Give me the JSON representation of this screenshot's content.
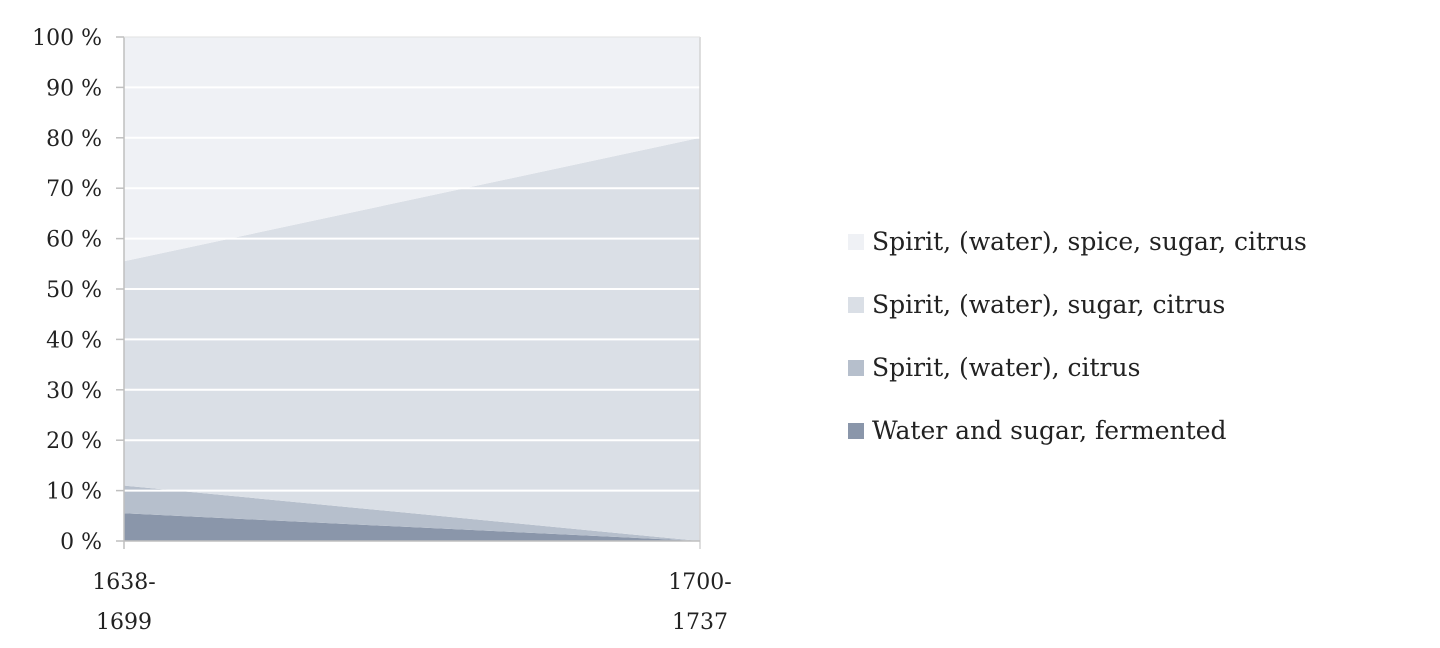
{
  "chart_data": {
    "type": "area",
    "stacked": true,
    "normalized_percent": true,
    "x": [
      "1638-1699",
      "1700-1737"
    ],
    "x_tick_lines": [
      [
        "1638-",
        "1699"
      ],
      [
        "1700-",
        "1737"
      ]
    ],
    "series": [
      {
        "name": "Water and sugar, fermented",
        "color": "#8a96aa",
        "values": [
          5.5,
          0
        ]
      },
      {
        "name": "Spirit, (water), citrus",
        "color": "#b6bfcc",
        "values": [
          5.5,
          0
        ]
      },
      {
        "name": "Spirit, (water), sugar, citrus",
        "color": "#dadfe6",
        "values": [
          44.5,
          80
        ]
      },
      {
        "name": "Spirit, (water), spice, sugar, citrus",
        "color": "#eff1f5",
        "values": [
          44.5,
          20
        ]
      }
    ],
    "y_ticks": [
      "0 %",
      "10 %",
      "20 %",
      "30 %",
      "40 %",
      "50 %",
      "60 %",
      "70 %",
      "80 %",
      "90 %",
      "100 %"
    ],
    "ylim": [
      0,
      100
    ],
    "grid": true,
    "legend_position": "right",
    "title": "",
    "xlabel": "",
    "ylabel": ""
  }
}
